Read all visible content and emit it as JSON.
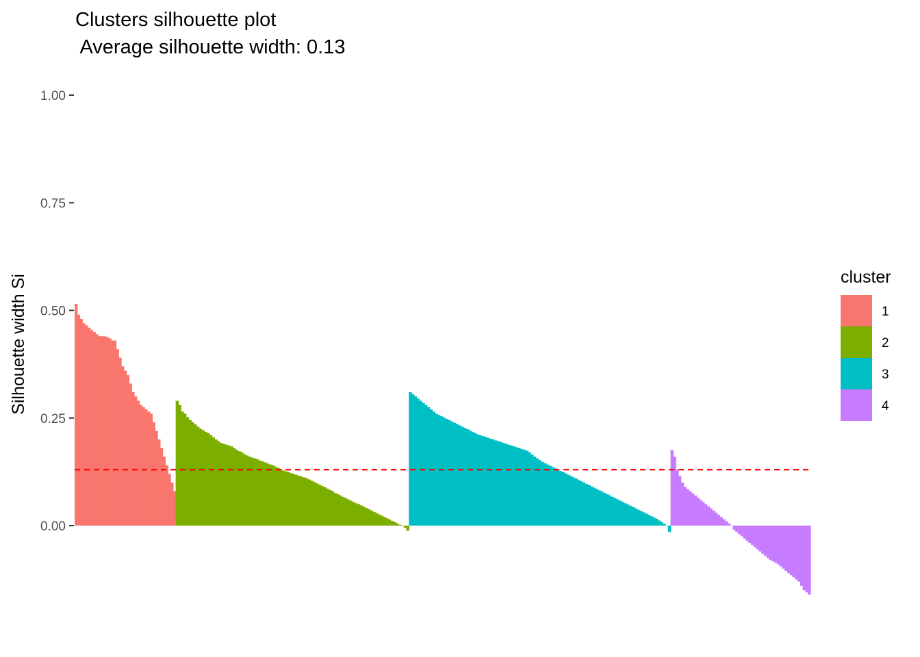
{
  "chart_data": {
    "type": "bar",
    "title": "Clusters silhouette plot",
    "subtitle": "Average silhouette width: 0.13",
    "xlabel": "",
    "ylabel": "Silhouette width Si",
    "ylim": [
      -0.16,
      1.0
    ],
    "yticks": [
      "0.00",
      "0.25",
      "0.50",
      "0.75",
      "1.00"
    ],
    "grid": false,
    "average_line": {
      "value": 0.13,
      "color": "#ff0000",
      "style": "dashed"
    },
    "legend": {
      "title": "cluster",
      "placement": "right",
      "items": [
        "1",
        "2",
        "3",
        "4"
      ]
    },
    "series": [
      {
        "name": "1",
        "color": "#F8766D",
        "values": [
          0.515,
          0.49,
          0.48,
          0.47,
          0.465,
          0.46,
          0.455,
          0.45,
          0.445,
          0.44,
          0.44,
          0.44,
          0.438,
          0.435,
          0.43,
          0.43,
          0.41,
          0.39,
          0.37,
          0.36,
          0.35,
          0.33,
          0.31,
          0.3,
          0.29,
          0.28,
          0.275,
          0.27,
          0.265,
          0.26,
          0.24,
          0.22,
          0.2,
          0.18,
          0.16,
          0.14,
          0.12,
          0.1,
          0.08
        ]
      },
      {
        "name": "2",
        "color": "#7CAE00",
        "values": [
          0.29,
          0.28,
          0.265,
          0.26,
          0.252,
          0.245,
          0.24,
          0.235,
          0.23,
          0.225,
          0.222,
          0.218,
          0.215,
          0.21,
          0.205,
          0.2,
          0.196,
          0.192,
          0.19,
          0.188,
          0.186,
          0.184,
          0.18,
          0.176,
          0.173,
          0.17,
          0.166,
          0.163,
          0.16,
          0.158,
          0.156,
          0.154,
          0.151,
          0.149,
          0.147,
          0.144,
          0.142,
          0.14,
          0.137,
          0.134,
          0.131,
          0.128,
          0.126,
          0.124,
          0.122,
          0.12,
          0.118,
          0.116,
          0.114,
          0.112,
          0.11,
          0.107,
          0.104,
          0.101,
          0.098,
          0.095,
          0.092,
          0.089,
          0.086,
          0.083,
          0.08,
          0.076,
          0.073,
          0.07,
          0.067,
          0.064,
          0.061,
          0.058,
          0.055,
          0.052,
          0.05,
          0.047,
          0.044,
          0.041,
          0.038,
          0.035,
          0.032,
          0.029,
          0.026,
          0.023,
          0.02,
          0.017,
          0.014,
          0.011,
          0.008,
          0.005,
          0.002,
          0.0,
          -0.005,
          -0.012
        ]
      },
      {
        "name": "3",
        "color": "#00BFC4",
        "values": [
          0.31,
          0.305,
          0.3,
          0.295,
          0.29,
          0.285,
          0.28,
          0.275,
          0.27,
          0.265,
          0.26,
          0.257,
          0.254,
          0.251,
          0.248,
          0.245,
          0.242,
          0.239,
          0.236,
          0.233,
          0.23,
          0.227,
          0.224,
          0.221,
          0.218,
          0.215,
          0.212,
          0.21,
          0.208,
          0.206,
          0.204,
          0.202,
          0.2,
          0.198,
          0.196,
          0.194,
          0.192,
          0.19,
          0.188,
          0.186,
          0.184,
          0.182,
          0.18,
          0.178,
          0.176,
          0.174,
          0.17,
          0.165,
          0.16,
          0.156,
          0.152,
          0.148,
          0.145,
          0.142,
          0.139,
          0.136,
          0.133,
          0.13,
          0.127,
          0.124,
          0.121,
          0.118,
          0.115,
          0.112,
          0.109,
          0.106,
          0.103,
          0.1,
          0.097,
          0.094,
          0.091,
          0.088,
          0.085,
          0.082,
          0.079,
          0.076,
          0.073,
          0.07,
          0.067,
          0.064,
          0.061,
          0.058,
          0.055,
          0.052,
          0.049,
          0.046,
          0.043,
          0.04,
          0.037,
          0.034,
          0.031,
          0.028,
          0.025,
          0.022,
          0.019,
          0.016,
          0.012,
          0.008,
          0.004,
          0.0,
          -0.015
        ]
      },
      {
        "name": "4",
        "color": "#C77CFF",
        "values": [
          0.175,
          0.16,
          0.13,
          0.115,
          0.1,
          0.09,
          0.085,
          0.08,
          0.075,
          0.07,
          0.065,
          0.06,
          0.055,
          0.05,
          0.045,
          0.04,
          0.035,
          0.03,
          0.025,
          0.02,
          0.015,
          0.01,
          0.005,
          0.0,
          -0.01,
          -0.015,
          -0.02,
          -0.025,
          -0.03,
          -0.035,
          -0.04,
          -0.045,
          -0.05,
          -0.055,
          -0.06,
          -0.065,
          -0.07,
          -0.075,
          -0.08,
          -0.083,
          -0.086,
          -0.09,
          -0.095,
          -0.1,
          -0.105,
          -0.11,
          -0.115,
          -0.12,
          -0.125,
          -0.13,
          -0.14,
          -0.15,
          -0.155,
          -0.16
        ]
      }
    ]
  }
}
